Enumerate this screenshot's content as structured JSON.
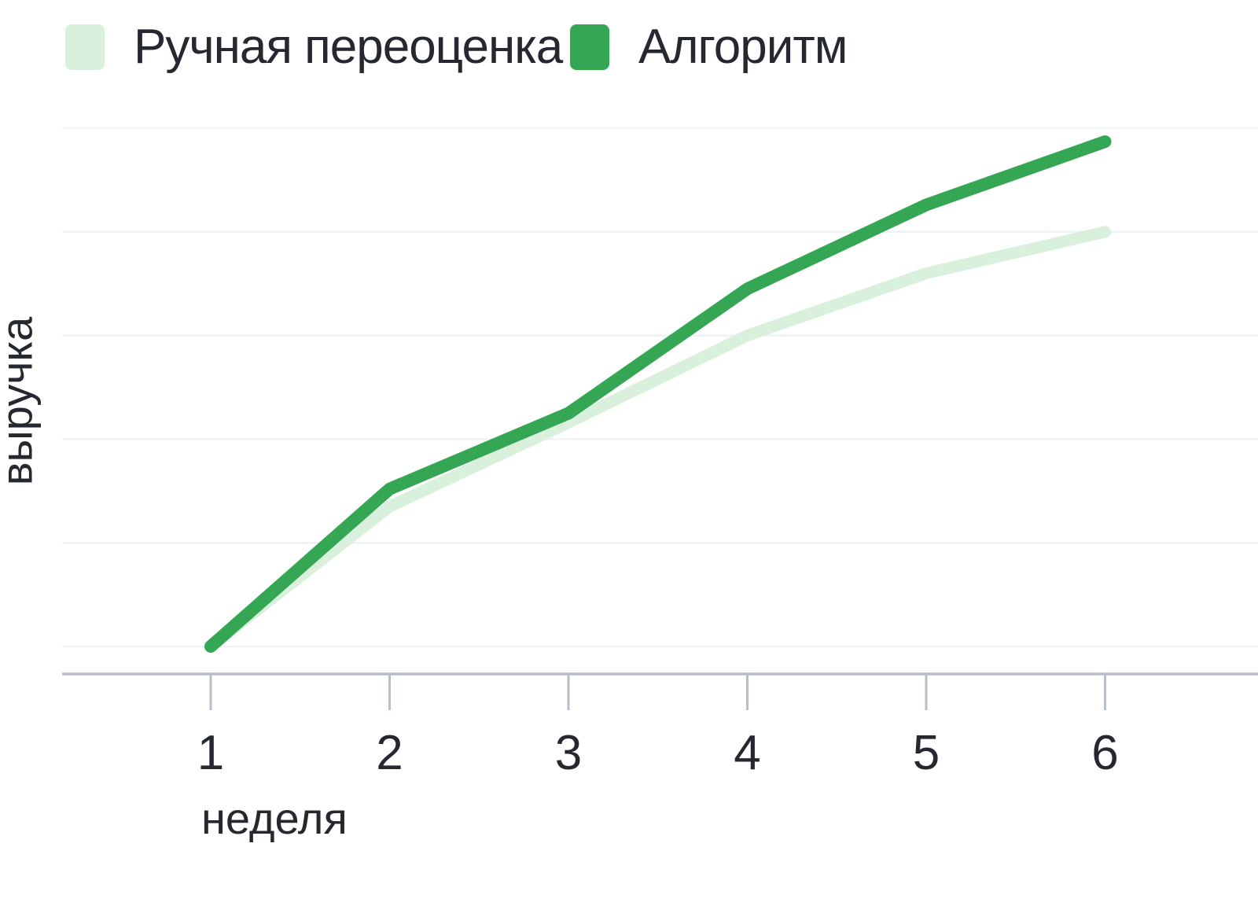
{
  "legend": {
    "items": [
      {
        "key": "manual",
        "label": "Ручная переоценка",
        "color": "#d9f1dc"
      },
      {
        "key": "algorithm",
        "label": "Алгоритм",
        "color": "#35a653"
      }
    ]
  },
  "chart_data": {
    "type": "line",
    "x": [
      1,
      2,
      3,
      4,
      5,
      6
    ],
    "categories": [
      "1",
      "2",
      "3",
      "4",
      "5",
      "6"
    ],
    "xlabel": "неделя",
    "ylabel": "выручка",
    "series": [
      {
        "key": "manual",
        "name": "Ручная переоценка",
        "color": "#d9f1dc",
        "values": [
          0,
          1.35,
          2.16,
          3.0,
          3.6,
          4.0
        ]
      },
      {
        "key": "algorithm",
        "name": "Алгоритм",
        "color": "#35a653",
        "values": [
          0,
          1.52,
          2.25,
          3.45,
          4.26,
          4.87
        ]
      }
    ],
    "ylim": [
      0,
      5
    ],
    "y_gridline_count": 6,
    "y_tick_labels_visible": false,
    "grid": "horizontal",
    "legend_position": "top-left"
  },
  "colors": {
    "grid": "#eff2f6",
    "axis": "#b8bfca",
    "text": "#25282e",
    "background": "#ffffff"
  }
}
